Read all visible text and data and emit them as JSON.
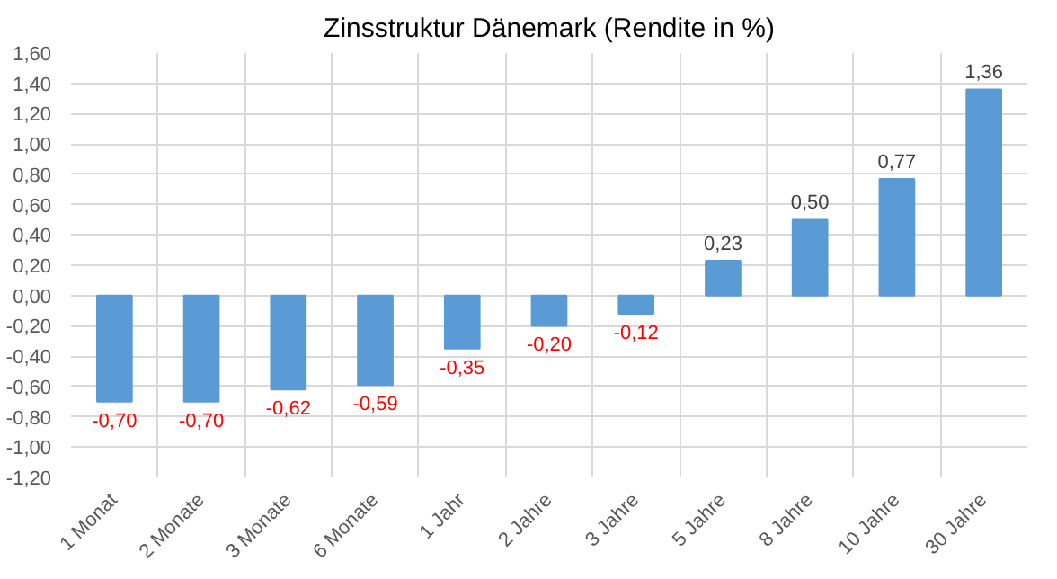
{
  "chart_data": {
    "type": "bar",
    "title": "Zinsstruktur Dänemark (Rendite in %)",
    "categories": [
      "1 Monat",
      "2 Monate",
      "3 Monate",
      "6 Monate",
      "1 Jahr",
      "2 Jahre",
      "3 Jahre",
      "5 Jahre",
      "8 Jahre",
      "10 Jahre",
      "30 Jahre"
    ],
    "values": [
      -0.7,
      -0.7,
      -0.62,
      -0.59,
      -0.35,
      -0.2,
      -0.12,
      0.23,
      0.5,
      0.77,
      1.36
    ],
    "value_labels": [
      "-0,70",
      "-0,70",
      "-0,62",
      "-0,59",
      "-0,35",
      "-0,20",
      "-0,12",
      "0,23",
      "0,50",
      "0,77",
      "1,36"
    ],
    "color": "#5b9bd5",
    "ylim": [
      -1.2,
      1.6
    ],
    "yticks": [
      {
        "value": -1.2,
        "label": "-1,20"
      },
      {
        "value": -1.0,
        "label": "-1,00"
      },
      {
        "value": -0.8,
        "label": "-0,80"
      },
      {
        "value": -0.6,
        "label": "-0,60"
      },
      {
        "value": -0.4,
        "label": "-0,40"
      },
      {
        "value": -0.2,
        "label": "-0,20"
      },
      {
        "value": 0,
        "label": "0,00"
      },
      {
        "value": 0.2,
        "label": "0,20"
      },
      {
        "value": 0.4,
        "label": "0,40"
      },
      {
        "value": 0.6,
        "label": "0,60"
      },
      {
        "value": 0.8,
        "label": "0,80"
      },
      {
        "value": 1.0,
        "label": "1,00"
      },
      {
        "value": 1.2,
        "label": "1,20"
      },
      {
        "value": 1.4,
        "label": "1,40"
      },
      {
        "value": 1.6,
        "label": "1,60"
      }
    ],
    "grid": true
  }
}
